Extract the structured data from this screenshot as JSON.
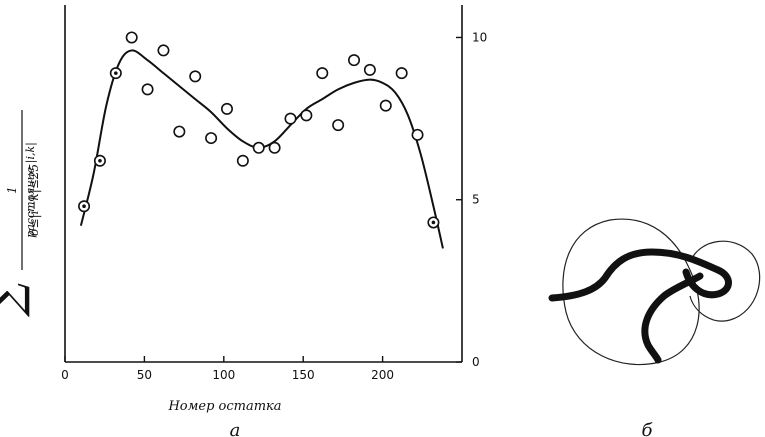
{
  "chart_data": {
    "type": "scatter",
    "panel_label": "а",
    "xlabel": "Номер остатка",
    "ylabel_formula": {
      "sum_symbol": "∑",
      "subscript": "6≤|i−k|≤25",
      "numerator": "1",
      "denominator": "расстояние |i,k|"
    },
    "xlim": [
      0,
      250
    ],
    "ylim": [
      0,
      11
    ],
    "x_ticks": [
      0,
      50,
      100,
      150,
      200
    ],
    "x_tick_labels": [
      "0",
      "50",
      "100",
      "150",
      "200"
    ],
    "y_ticks": [
      0,
      5,
      10
    ],
    "y_tick_labels": [
      "0",
      "5",
      "10"
    ],
    "y_axis_side": "right",
    "grid": false,
    "series": [
      {
        "kind": "points",
        "x": [
          12,
          22,
          32,
          42,
          52,
          62,
          72,
          82,
          92,
          102,
          112,
          122,
          132,
          142,
          152,
          162,
          172,
          182,
          192,
          202,
          212,
          222,
          232
        ],
        "y": [
          4.8,
          6.2,
          8.9,
          10.0,
          8.4,
          9.6,
          7.1,
          8.8,
          6.9,
          7.8,
          6.2,
          6.6,
          6.6,
          7.5,
          7.6,
          8.9,
          7.3,
          9.3,
          9.0,
          7.9,
          8.9,
          7.0,
          4.3
        ]
      },
      {
        "kind": "fit-curve",
        "x": [
          10,
          18,
          26,
          34,
          42,
          52,
          62,
          72,
          82,
          92,
          102,
          112,
          122,
          132,
          142,
          152,
          162,
          172,
          182,
          192,
          200,
          208,
          216,
          224,
          232,
          238
        ],
        "y": [
          4.2,
          5.8,
          7.9,
          9.2,
          9.6,
          9.3,
          8.9,
          8.5,
          8.1,
          7.7,
          7.2,
          6.8,
          6.6,
          6.8,
          7.3,
          7.8,
          8.1,
          8.4,
          8.6,
          8.7,
          8.6,
          8.3,
          7.6,
          6.4,
          4.8,
          3.5
        ]
      }
    ],
    "filled_points": [
      0,
      1,
      2,
      22
    ]
  },
  "diagram": {
    "panel_label": "б"
  }
}
